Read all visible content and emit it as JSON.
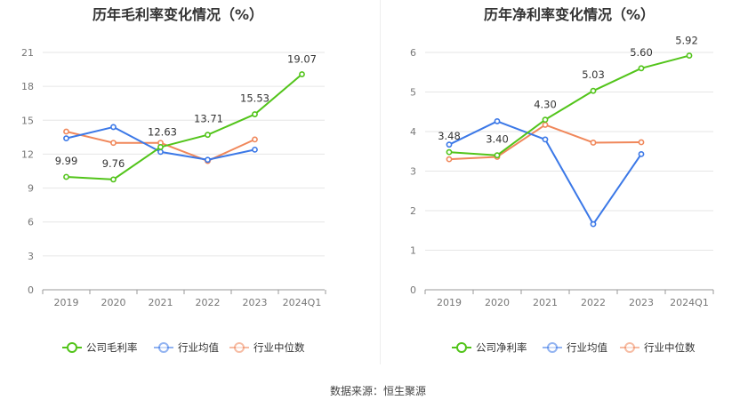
{
  "colors": {
    "company": "#52c41a",
    "avg": "#3b78e7",
    "median": "#f0875a",
    "grid": "#e6e6e6",
    "axis": "#999999"
  },
  "source_text": "数据来源：恒生聚源",
  "chart_data": [
    {
      "type": "line",
      "title": "历年毛利率变化情况（%）",
      "categories": [
        "2019",
        "2020",
        "2021",
        "2022",
        "2023",
        "2024Q1"
      ],
      "yticks": [
        "0",
        "3",
        "6",
        "9",
        "12",
        "15",
        "18",
        "21"
      ],
      "ylim": [
        0,
        21
      ],
      "grid": true,
      "legend_position": "bottom",
      "series": [
        {
          "name": "公司毛利率",
          "key": "company",
          "values": [
            9.99,
            9.76,
            12.63,
            13.71,
            15.53,
            19.07
          ],
          "labels": [
            "9.99",
            "9.76",
            "12.63",
            "13.71",
            "15.53",
            "19.07"
          ]
        },
        {
          "name": "行业均值",
          "key": "avg",
          "values": [
            13.4,
            14.4,
            12.2,
            11.5,
            12.4,
            null
          ]
        },
        {
          "name": "行业中位数",
          "key": "median",
          "values": [
            14.0,
            13.0,
            13.0,
            11.4,
            13.3,
            null
          ]
        }
      ]
    },
    {
      "type": "line",
      "title": "历年净利率变化情况（%）",
      "categories": [
        "2019",
        "2020",
        "2021",
        "2022",
        "2023",
        "2024Q1"
      ],
      "yticks": [
        "0",
        "1",
        "2",
        "3",
        "4",
        "5",
        "6"
      ],
      "ylim": [
        0,
        6
      ],
      "grid": true,
      "legend_position": "bottom",
      "series": [
        {
          "name": "公司净利率",
          "key": "company",
          "values": [
            3.48,
            3.4,
            4.3,
            5.03,
            5.6,
            5.92
          ],
          "labels": [
            "3.48",
            "3.40",
            "4.30",
            "5.03",
            "5.60",
            "5.92"
          ]
        },
        {
          "name": "行业均值",
          "key": "avg",
          "values": [
            3.67,
            4.26,
            3.8,
            1.66,
            3.43,
            null
          ]
        },
        {
          "name": "行业中位数",
          "key": "median",
          "values": [
            3.3,
            3.36,
            4.17,
            3.72,
            3.73,
            null
          ]
        }
      ]
    }
  ]
}
